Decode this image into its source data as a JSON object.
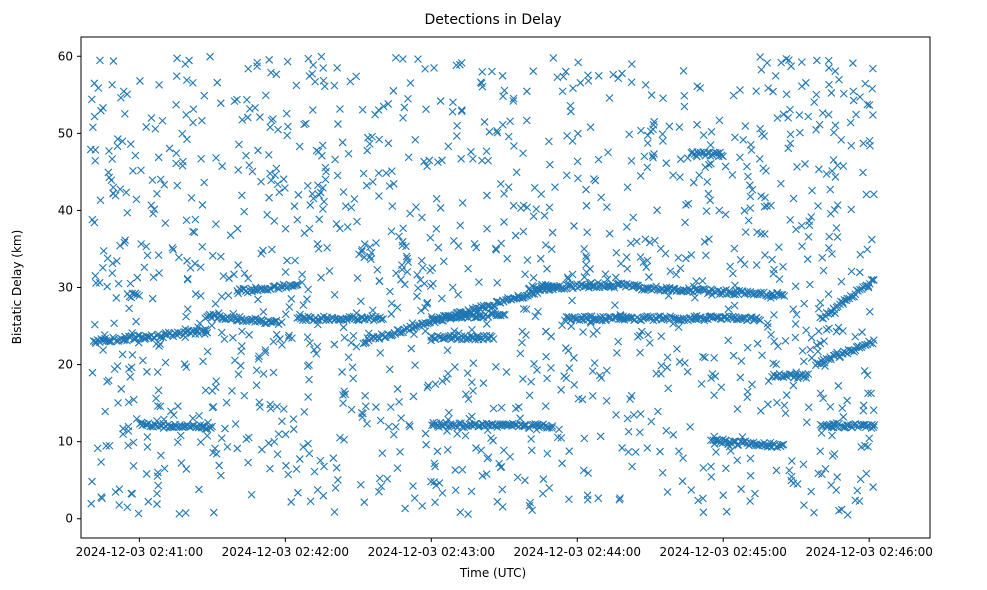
{
  "chart_data": {
    "type": "scatter",
    "title": "Detections in Delay",
    "xlabel": "Time (UTC)",
    "ylabel": "Bistatic Delay (km)",
    "marker": "x",
    "color": "#1f77b4",
    "xlim_seconds": [
      -24,
      325
    ],
    "ylim": [
      -2.5,
      62.5
    ],
    "x_ticks": [
      {
        "seconds": 0,
        "label": "2024-12-03 02:41:00"
      },
      {
        "seconds": 60,
        "label": "2024-12-03 02:42:00"
      },
      {
        "seconds": 120,
        "label": "2024-12-03 02:43:00"
      },
      {
        "seconds": 180,
        "label": "2024-12-03 02:44:00"
      },
      {
        "seconds": 240,
        "label": "2024-12-03 02:45:00"
      },
      {
        "seconds": 300,
        "label": "2024-12-03 02:46:00"
      }
    ],
    "y_ticks": [
      0,
      10,
      20,
      30,
      40,
      50,
      60
    ],
    "x_reference": "2024-12-03 02:41:00",
    "x_range_data_seconds": [
      -20,
      302
    ],
    "tracks": [
      {
        "t_start": -19,
        "t_end": 28,
        "y_start": 23.0,
        "y_end": 24.3
      },
      {
        "t_start": 28,
        "t_end": 57,
        "y_start": 26.3,
        "y_end": 25.5
      },
      {
        "t_start": 40,
        "t_end": 65,
        "y_start": 29.5,
        "y_end": 30.3
      },
      {
        "t_start": 65,
        "t_end": 100,
        "y_start": 26.0,
        "y_end": 26.0
      },
      {
        "t_start": 92,
        "t_end": 170,
        "y_start": 23.0,
        "y_end": 30.0
      },
      {
        "t_start": 120,
        "t_end": 145,
        "y_start": 23.5,
        "y_end": 23.5
      },
      {
        "t_start": 120,
        "t_end": 150,
        "y_start": 26.0,
        "y_end": 26.5
      },
      {
        "t_start": 160,
        "t_end": 205,
        "y_start": 30.0,
        "y_end": 30.3
      },
      {
        "t_start": 175,
        "t_end": 255,
        "y_start": 26.0,
        "y_end": 26.0
      },
      {
        "t_start": 205,
        "t_end": 265,
        "y_start": 30.0,
        "y_end": 29.0
      },
      {
        "t_start": 260,
        "t_end": 275,
        "y_start": 18.5,
        "y_end": 18.5
      },
      {
        "t_start": 278,
        "t_end": 302,
        "y_start": 20.0,
        "y_end": 23.0
      },
      {
        "t_start": 280,
        "t_end": 302,
        "y_start": 26.0,
        "y_end": 31.0
      },
      {
        "t_start": 0,
        "t_end": 30,
        "y_start": 12.2,
        "y_end": 11.8
      },
      {
        "t_start": 120,
        "t_end": 170,
        "y_start": 12.2,
        "y_end": 12.0
      },
      {
        "t_start": 280,
        "t_end": 302,
        "y_start": 12.2,
        "y_end": 12.0
      },
      {
        "t_start": 227,
        "t_end": 240,
        "y_start": 47.3,
        "y_end": 47.3
      },
      {
        "t_start": -5,
        "t_end": 0,
        "y_start": 29.0,
        "y_end": 29.0
      },
      {
        "t_start": 235,
        "t_end": 265,
        "y_start": 10.0,
        "y_end": 9.5
      }
    ],
    "noise_detection_count": 1350,
    "noise_y_range": [
      0.5,
      60
    ]
  }
}
